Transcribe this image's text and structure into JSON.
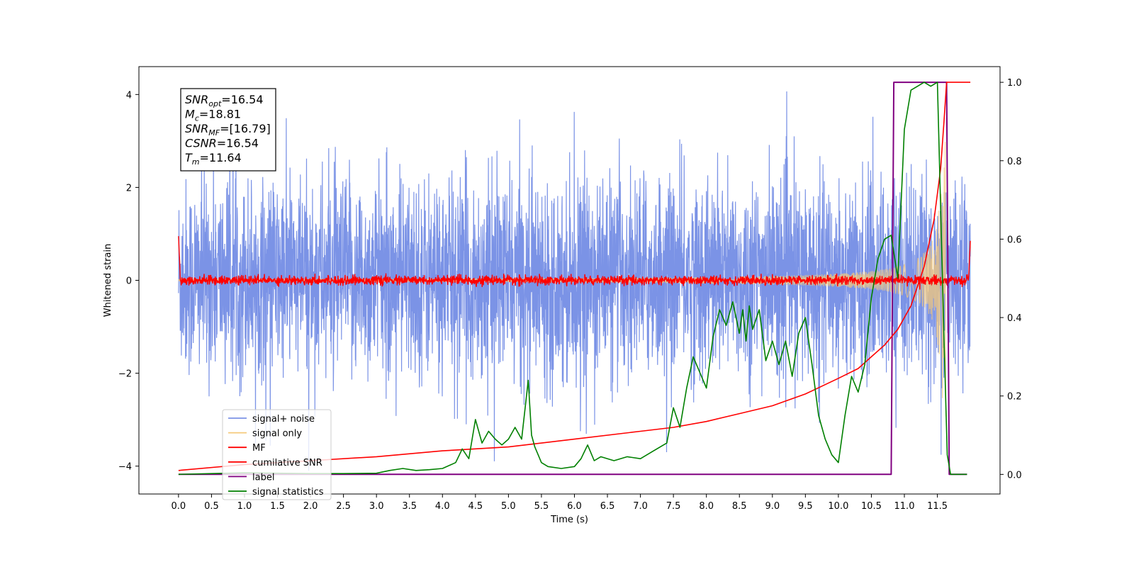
{
  "chart_data": {
    "type": "line",
    "xlabel": "Time (s)",
    "ylabel_left": "Whitened strain",
    "ylabel_right": "",
    "xlim": [
      -0.6,
      12.45
    ],
    "ylim_left": [
      -4.6,
      4.6
    ],
    "ylim_right": [
      -0.05,
      1.04
    ],
    "x_ticks": [
      "0.0",
      "0.5",
      "1.0",
      "1.5",
      "2.0",
      "2.5",
      "3.0",
      "3.5",
      "4.0",
      "4.5",
      "5.0",
      "5.5",
      "6.0",
      "6.5",
      "7.0",
      "7.5",
      "8.0",
      "8.5",
      "9.0",
      "9.5",
      "10.0",
      "10.5",
      "11.0",
      "11.5"
    ],
    "y_left_ticks": [
      "−4",
      "−2",
      "0",
      "2",
      "4"
    ],
    "y_right_ticks": [
      "0.0",
      "0.2",
      "0.4",
      "0.6",
      "0.8",
      "1.0"
    ],
    "grid": false,
    "legend_position": "lower-left",
    "info_box": {
      "lines": [
        {
          "sym": "SNR",
          "sub": "opt",
          "value": "=16.54"
        },
        {
          "sym": "M",
          "sub": "c",
          "value": "=18.81"
        },
        {
          "sym": "SNR",
          "sub": "MF",
          "value": "=[16.79]"
        },
        {
          "sym": "CSNR",
          "sub": "",
          "value": "=16.54"
        },
        {
          "sym": "T",
          "sub": "m",
          "value": "=11.64"
        }
      ]
    },
    "colors": {
      "signal_noise": "#7b93e6",
      "signal_only": "#f5c97a",
      "mf": "#ff0000",
      "cumulative_snr": "#ff0000",
      "label": "#800080",
      "signal_statistics": "#008000"
    },
    "series": [
      {
        "name": "signal+ noise",
        "axis": "left",
        "style": "noise",
        "x_range": [
          0.0,
          12.0
        ],
        "amplitude_range": [
          -4.1,
          4.1
        ]
      },
      {
        "name": "signal only",
        "axis": "left",
        "style": "chirp",
        "x_range": [
          0.0,
          11.64
        ]
      },
      {
        "name": "MF",
        "axis": "left",
        "style": "noise-small",
        "x_range": [
          0.0,
          12.0
        ],
        "amplitude_range": [
          -0.2,
          0.2
        ]
      },
      {
        "name": "cumilative SNR",
        "axis": "right",
        "x": [
          0.0,
          1.0,
          2.0,
          3.0,
          4.0,
          5.0,
          6.0,
          7.0,
          7.5,
          8.0,
          8.5,
          9.0,
          9.5,
          10.0,
          10.3,
          10.5,
          10.7,
          10.9,
          11.1,
          11.3,
          11.45,
          11.55,
          11.6,
          11.64,
          12.0
        ],
        "y": [
          0.01,
          0.025,
          0.035,
          0.045,
          0.06,
          0.07,
          0.09,
          0.11,
          0.12,
          0.135,
          0.155,
          0.175,
          0.205,
          0.245,
          0.27,
          0.3,
          0.33,
          0.37,
          0.43,
          0.53,
          0.65,
          0.78,
          0.9,
          1.0,
          1.0
        ]
      },
      {
        "name": "label",
        "axis": "right",
        "x": [
          0.0,
          10.8,
          10.84,
          11.64,
          11.68,
          11.95
        ],
        "y": [
          0.0,
          0.0,
          1.0,
          1.0,
          0.0,
          0.0
        ]
      },
      {
        "name": "signal statistics",
        "axis": "right",
        "x": [
          0.0,
          0.5,
          1.0,
          1.5,
          2.0,
          2.5,
          3.0,
          3.2,
          3.4,
          3.6,
          3.8,
          4.0,
          4.2,
          4.3,
          4.4,
          4.5,
          4.6,
          4.7,
          4.8,
          4.9,
          5.0,
          5.1,
          5.2,
          5.3,
          5.35,
          5.4,
          5.45,
          5.5,
          5.6,
          5.8,
          6.0,
          6.1,
          6.2,
          6.3,
          6.4,
          6.6,
          6.8,
          7.0,
          7.2,
          7.4,
          7.5,
          7.6,
          7.7,
          7.8,
          7.9,
          8.0,
          8.1,
          8.2,
          8.3,
          8.4,
          8.5,
          8.55,
          8.6,
          8.65,
          8.7,
          8.8,
          8.9,
          9.0,
          9.1,
          9.2,
          9.3,
          9.4,
          9.5,
          9.6,
          9.7,
          9.8,
          9.9,
          10.0,
          10.1,
          10.2,
          10.3,
          10.4,
          10.5,
          10.6,
          10.7,
          10.8,
          10.9,
          11.0,
          11.1,
          11.2,
          11.3,
          11.4,
          11.5,
          11.6,
          11.65,
          11.7,
          11.8,
          11.95
        ],
        "y": [
          0.0,
          0.002,
          0.004,
          0.003,
          0.002,
          0.002,
          0.003,
          0.01,
          0.015,
          0.01,
          0.012,
          0.015,
          0.03,
          0.065,
          0.04,
          0.14,
          0.08,
          0.11,
          0.09,
          0.075,
          0.09,
          0.12,
          0.09,
          0.24,
          0.1,
          0.07,
          0.05,
          0.03,
          0.02,
          0.015,
          0.02,
          0.04,
          0.075,
          0.035,
          0.045,
          0.035,
          0.045,
          0.04,
          0.06,
          0.08,
          0.17,
          0.12,
          0.22,
          0.3,
          0.26,
          0.22,
          0.35,
          0.42,
          0.38,
          0.44,
          0.36,
          0.42,
          0.34,
          0.43,
          0.37,
          0.42,
          0.29,
          0.34,
          0.28,
          0.34,
          0.25,
          0.36,
          0.4,
          0.28,
          0.15,
          0.09,
          0.05,
          0.03,
          0.15,
          0.25,
          0.21,
          0.28,
          0.45,
          0.55,
          0.6,
          0.61,
          0.5,
          0.88,
          0.98,
          0.99,
          1.0,
          0.99,
          1.0,
          0.35,
          0.05,
          0.0,
          0.0,
          0.0
        ]
      }
    ]
  }
}
